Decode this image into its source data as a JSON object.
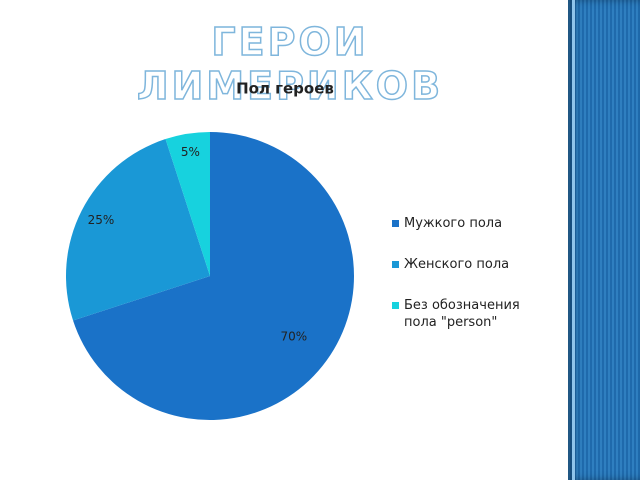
{
  "slide": {
    "title": "ГЕРОИ ЛИМЕРИКОВ"
  },
  "chart_data": {
    "type": "pie",
    "title": "Пол героев",
    "categories": [
      "Мужкого пола",
      "Женского пола",
      "Без обозначения пола \"person\""
    ],
    "values": [
      70,
      25,
      5
    ],
    "value_labels": [
      "70%",
      "25%",
      "5%"
    ],
    "colors": [
      "#1a72c8",
      "#1a98d6",
      "#17d2de"
    ],
    "legend": "right"
  }
}
